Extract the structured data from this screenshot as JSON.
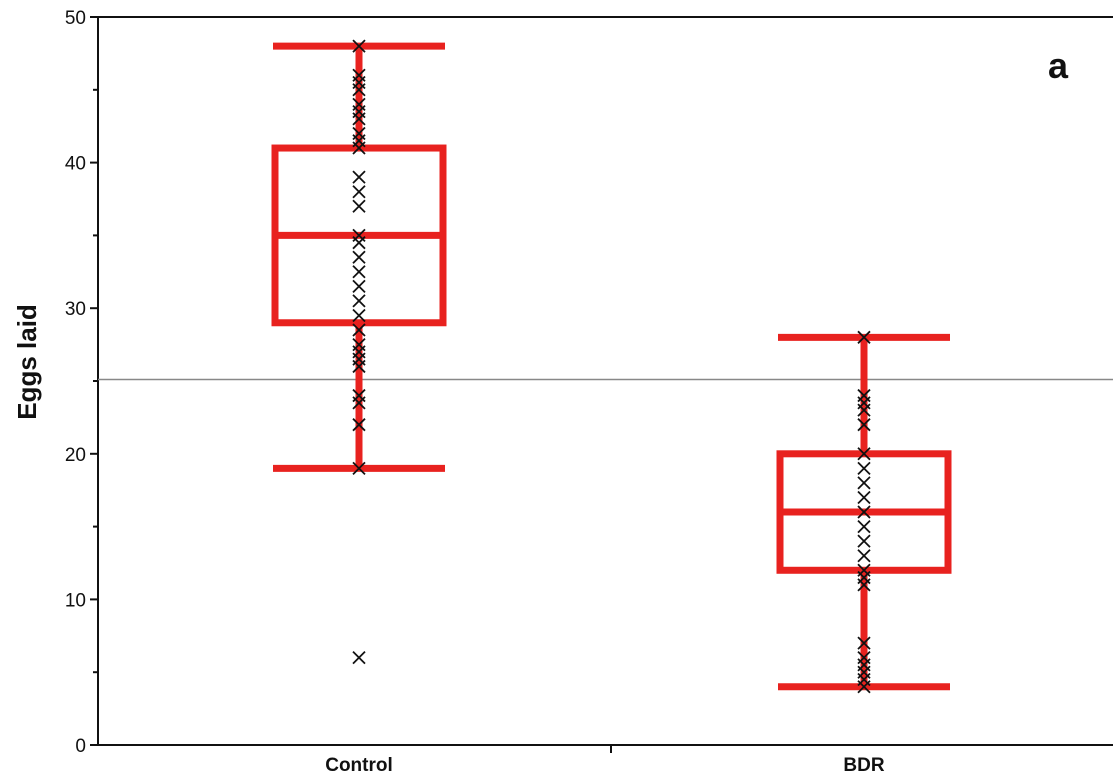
{
  "chart_data": {
    "type": "box",
    "panel_label": "a",
    "ylabel": "Eggs laid",
    "xlabel": "",
    "ylim": [
      0,
      50
    ],
    "yticks": [
      0,
      10,
      20,
      30,
      40,
      50
    ],
    "categories": [
      "Control",
      "BDR"
    ],
    "reference_line": 25.1,
    "box_color": "#e8221f",
    "point_color": "#111111",
    "line_color": "#888888",
    "boxes": [
      {
        "name": "Control",
        "whisker_low": 19,
        "q1": 29,
        "median": 35,
        "q3": 41,
        "whisker_high": 48,
        "points": [
          48,
          46,
          45.5,
          45,
          44,
          43.5,
          43,
          42,
          41.5,
          41,
          39,
          38,
          37,
          35,
          34.5,
          33.5,
          32.5,
          31.5,
          30.5,
          29.5,
          28.5,
          27.5,
          27,
          26.5,
          26,
          24,
          23.5,
          22,
          19,
          6
        ]
      },
      {
        "name": "BDR",
        "whisker_low": 4,
        "q1": 12,
        "median": 16,
        "q3": 20,
        "whisker_high": 28,
        "points": [
          28,
          24,
          23.5,
          23,
          22,
          20,
          19,
          18,
          17,
          16,
          15,
          14,
          13,
          12,
          11.5,
          11,
          7,
          6,
          5.5,
          5,
          4.5,
          4
        ]
      }
    ]
  }
}
